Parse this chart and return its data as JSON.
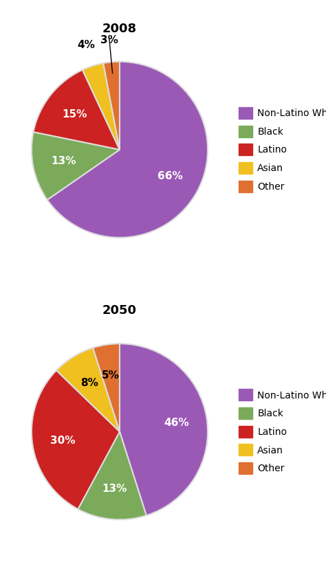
{
  "chart1": {
    "title": "2008",
    "values": [
      66,
      13,
      15,
      4,
      3
    ],
    "labels": [
      "66%",
      "13%",
      "15%",
      "4%",
      "3%"
    ],
    "colors": [
      "#9b59b6",
      "#7aaa5a",
      "#cc2222",
      "#f0c020",
      "#e07030"
    ],
    "startangle": 90,
    "legend_labels": [
      "Non-Latino White",
      "Black",
      "Latino",
      "Asian",
      "Other"
    ]
  },
  "chart2": {
    "title": "2050",
    "values": [
      46,
      13,
      30,
      8,
      5
    ],
    "labels": [
      "46%",
      "13%",
      "30%",
      "8%",
      "5%"
    ],
    "colors": [
      "#9b59b6",
      "#7aaa5a",
      "#cc2222",
      "#f0c020",
      "#e07030"
    ],
    "startangle": 90,
    "legend_labels": [
      "Non-Latino White",
      "Black",
      "Latino",
      "Asian",
      "Other"
    ]
  },
  "bg_color": "#ffffff",
  "label_fontsize": 11,
  "title_fontsize": 13,
  "legend_fontsize": 10,
  "wedge_edge_color": "#dddddd",
  "wedge_linewidth": 1.5
}
